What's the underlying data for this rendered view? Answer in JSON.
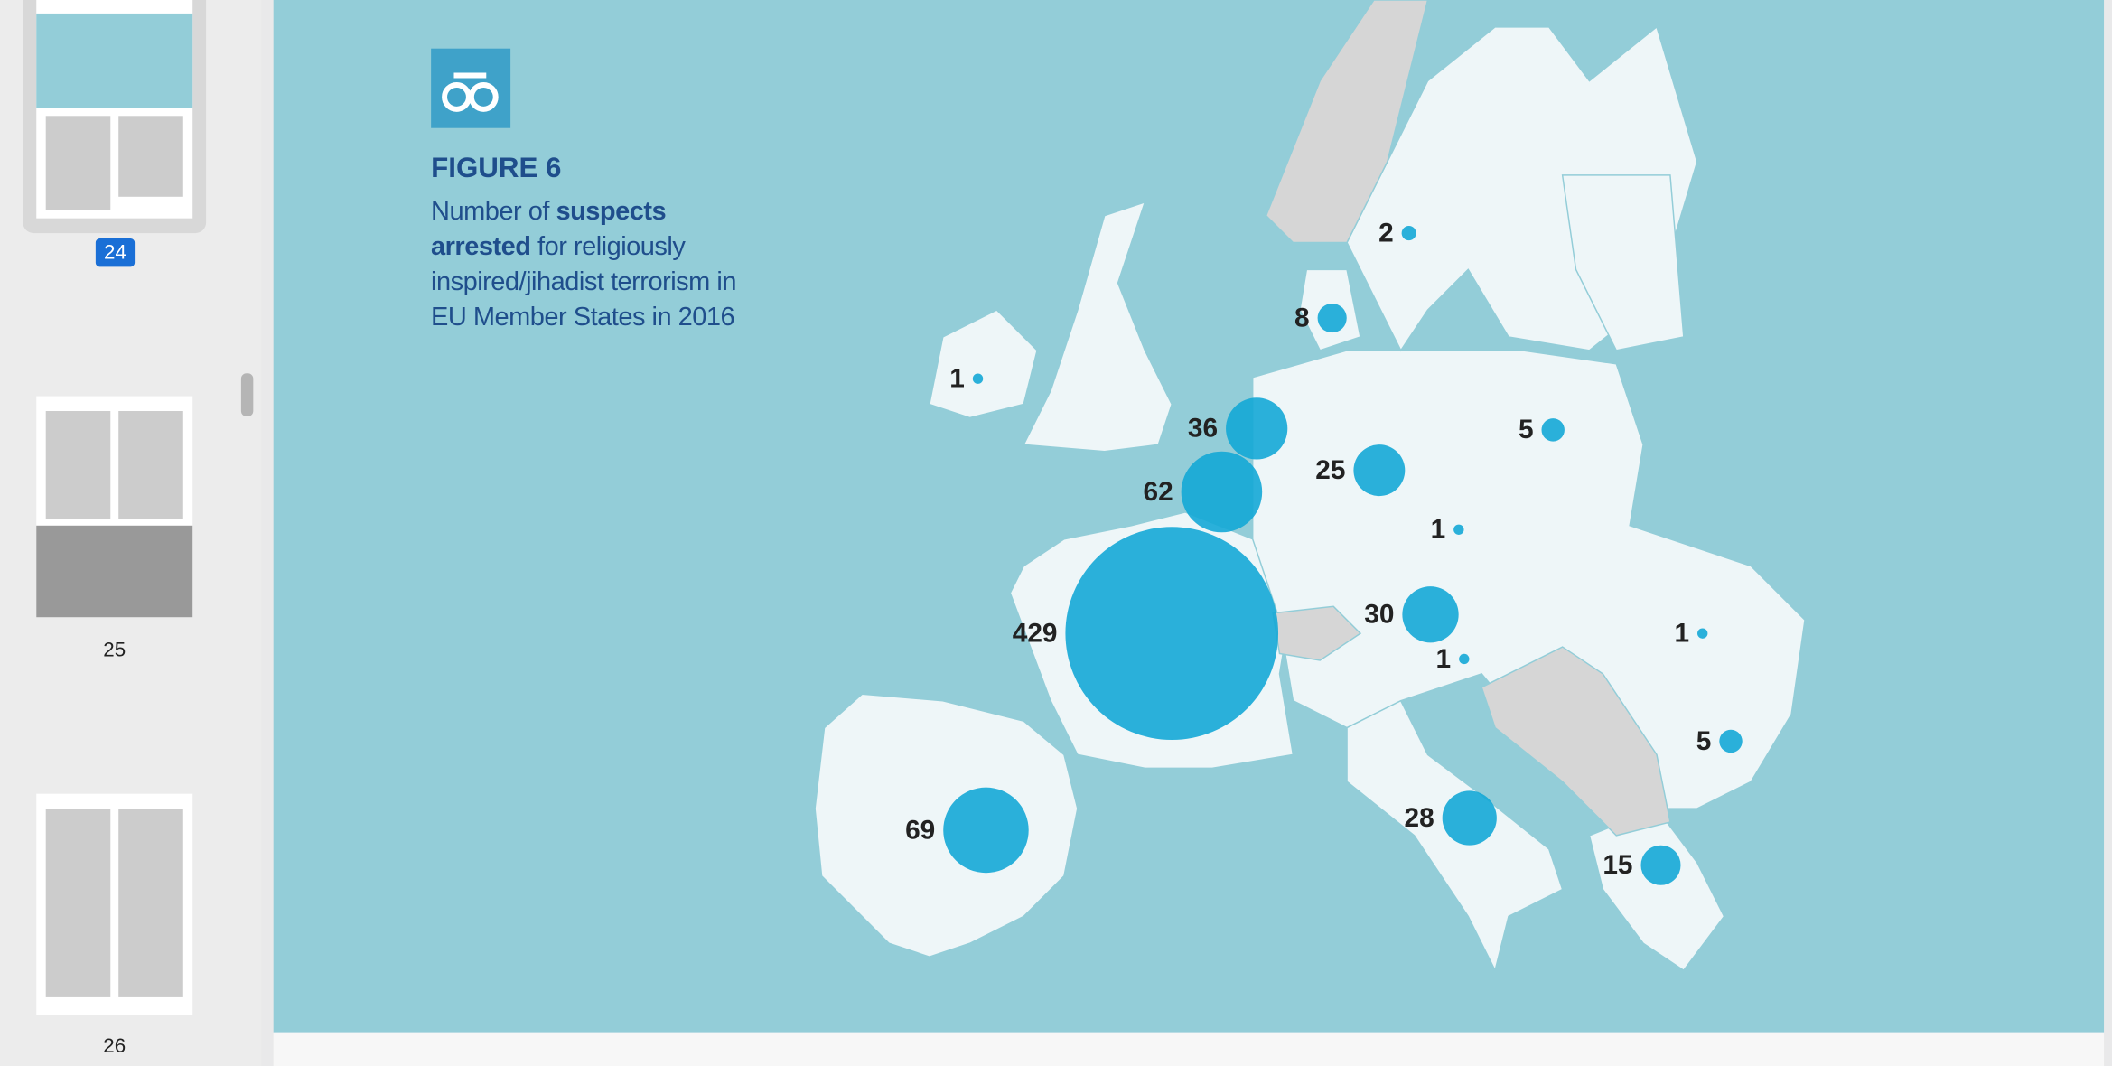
{
  "sidebar": {
    "pages": [
      {
        "label": "24"
      },
      {
        "label": "25"
      },
      {
        "label": "26"
      }
    ]
  },
  "figure": {
    "label": "FIGURE 6",
    "caption": {
      "lead": "Number of ",
      "emphasis": "suspects arrested",
      "rest": " for religiously inspired/jihadist terrorism in EU Member States in 2016"
    }
  },
  "bubbles": [
    {
      "value": 2
    },
    {
      "value": 8
    },
    {
      "value": 1
    },
    {
      "value": 36
    },
    {
      "value": 5
    },
    {
      "value": 25
    },
    {
      "value": 62
    },
    {
      "value": 1
    },
    {
      "value": 429
    },
    {
      "value": 30
    },
    {
      "value": 1
    },
    {
      "value": 1
    },
    {
      "value": 5
    },
    {
      "value": 69
    },
    {
      "value": 28
    },
    {
      "value": 15
    }
  ]
}
